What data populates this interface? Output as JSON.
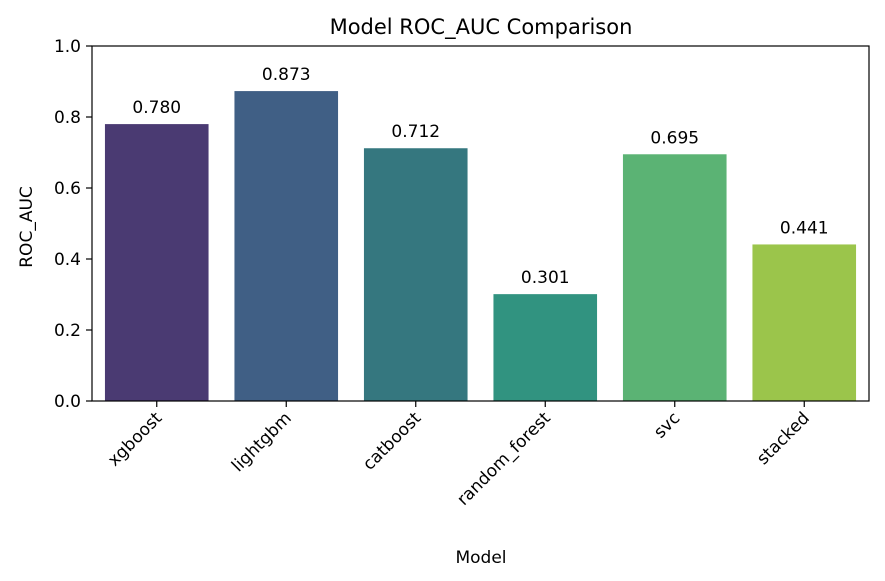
{
  "chart_data": {
    "type": "bar",
    "title": "Model ROC_AUC Comparison",
    "xlabel": "Model",
    "ylabel": "ROC_AUC",
    "ylim": [
      0,
      1.0
    ],
    "yticks": [
      0.0,
      0.2,
      0.4,
      0.6,
      0.8,
      1.0
    ],
    "ytick_labels": [
      "0.0",
      "0.2",
      "0.4",
      "0.6",
      "0.8",
      "1.0"
    ],
    "categories": [
      "xgboost",
      "lightgbm",
      "catboost",
      "random_forest",
      "svc",
      "stacked"
    ],
    "values": [
      0.78,
      0.873,
      0.712,
      0.301,
      0.695,
      0.441
    ],
    "value_labels": [
      "0.780",
      "0.873",
      "0.712",
      "0.301",
      "0.695",
      "0.441"
    ],
    "colors": [
      "#4a3a72",
      "#405f85",
      "#35777f",
      "#319380",
      "#5bb374",
      "#9bc54b"
    ],
    "grid": false,
    "legend": "none"
  }
}
